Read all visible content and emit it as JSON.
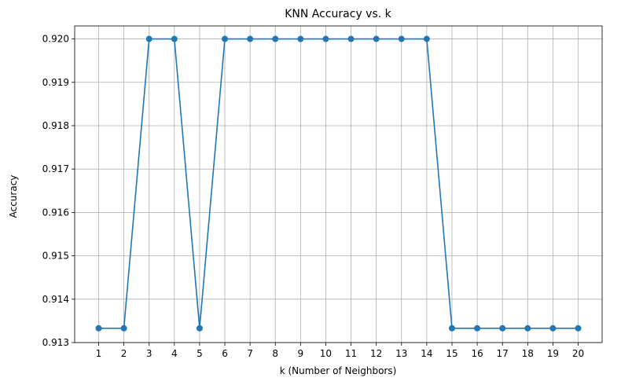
{
  "chart_data": {
    "type": "line",
    "title": "KNN Accuracy vs. k",
    "xlabel": "k (Number of Neighbors)",
    "ylabel": "Accuracy",
    "x": [
      1,
      2,
      3,
      4,
      5,
      6,
      7,
      8,
      9,
      10,
      11,
      12,
      13,
      14,
      15,
      16,
      17,
      18,
      19,
      20
    ],
    "series": [
      {
        "values": [
          0.91333,
          0.91333,
          0.92,
          0.92,
          0.91333,
          0.92,
          0.92,
          0.92,
          0.92,
          0.92,
          0.92,
          0.92,
          0.92,
          0.92,
          0.91333,
          0.91333,
          0.91333,
          0.91333,
          0.91333,
          0.91333
        ],
        "color": "#1f77b4",
        "marker": "circle"
      }
    ],
    "xlim": [
      0.05,
      20.95
    ],
    "ylim": [
      0.913,
      0.9203
    ],
    "xticks": [
      "1",
      "2",
      "3",
      "4",
      "5",
      "6",
      "7",
      "8",
      "9",
      "10",
      "11",
      "12",
      "13",
      "14",
      "15",
      "16",
      "17",
      "18",
      "19",
      "20"
    ],
    "yticks": [
      "0.913",
      "0.914",
      "0.915",
      "0.916",
      "0.917",
      "0.918",
      "0.919",
      "0.920"
    ],
    "ytick_values": [
      0.913,
      0.914,
      0.915,
      0.916,
      0.917,
      0.918,
      0.919,
      0.92
    ],
    "grid": true
  }
}
